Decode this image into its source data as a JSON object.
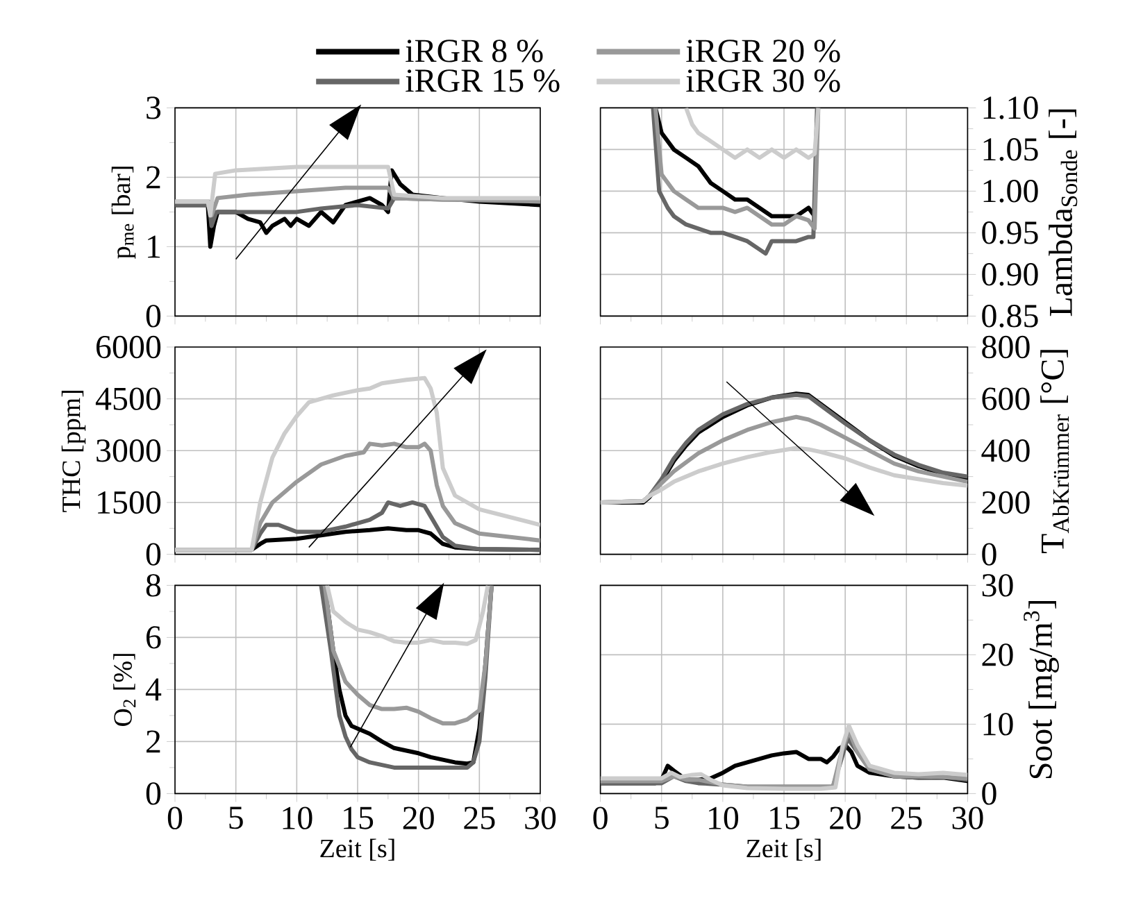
{
  "chart_data": [
    {
      "type": "line",
      "ylabel": "p$_{me}$ [bar]",
      "xlim": [
        0,
        30
      ],
      "xticks": [
        0,
        5,
        10,
        15,
        20,
        25,
        30
      ],
      "ylim": [
        0,
        3
      ],
      "yticks": [
        0,
        1,
        2,
        3
      ],
      "grid": true,
      "legend": "top",
      "tick_labels": "y",
      "series": [
        {
          "name": "iRGR 8 %",
          "color": "#000000",
          "x": [
            0,
            2.7,
            2.9,
            3.2,
            3.5,
            5,
            6,
            7,
            7.5,
            8,
            9,
            9.5,
            10,
            11,
            12,
            13,
            14,
            15,
            16,
            17,
            17.5,
            17.8,
            18.5,
            19.5,
            22,
            25,
            30
          ],
          "values": [
            1.6,
            1.6,
            1.0,
            1.3,
            1.5,
            1.5,
            1.4,
            1.35,
            1.2,
            1.3,
            1.4,
            1.3,
            1.4,
            1.3,
            1.5,
            1.35,
            1.6,
            1.65,
            1.7,
            1.6,
            1.5,
            2.1,
            1.9,
            1.75,
            1.7,
            1.65,
            1.6
          ]
        },
        {
          "name": "iRGR 15 %",
          "color": "#666666",
          "x": [
            0,
            2.8,
            3.0,
            3.4,
            5,
            7,
            10,
            12,
            15,
            17.5,
            18,
            22,
            30
          ],
          "values": [
            1.6,
            1.6,
            1.3,
            1.5,
            1.5,
            1.5,
            1.5,
            1.55,
            1.6,
            1.55,
            1.7,
            1.68,
            1.68
          ]
        },
        {
          "name": "iRGR 20 %",
          "color": "#999999",
          "x": [
            0,
            2.8,
            3.0,
            3.5,
            6,
            10,
            14,
            17.5,
            18,
            22,
            30
          ],
          "values": [
            1.65,
            1.65,
            1.45,
            1.7,
            1.75,
            1.8,
            1.85,
            1.85,
            1.7,
            1.68,
            1.65
          ]
        },
        {
          "name": "iRGR 30 %",
          "color": "#cccccc",
          "x": [
            0,
            2.7,
            2.9,
            3.3,
            5,
            10,
            17.5,
            18,
            22,
            30
          ],
          "values": [
            1.65,
            1.65,
            1.45,
            2.05,
            2.1,
            2.15,
            2.15,
            1.75,
            1.7,
            1.7
          ]
        }
      ]
    },
    {
      "type": "line",
      "ylabel": "Lambda$_{Sonde}$ [-]",
      "xlim": [
        0,
        30
      ],
      "xticks": [
        0,
        5,
        10,
        15,
        20,
        25,
        30
      ],
      "ylim": [
        0.85,
        1.1
      ],
      "yticks": [
        0.85,
        {
          "value": 0.9,
          "label": "0.90"
        },
        0.95,
        {
          "value": 1.0,
          "label": "1.00"
        },
        1.05,
        {
          "value": 1.1,
          "label": "1.10"
        }
      ],
      "grid": true,
      "tick_labels": "y",
      "series": [
        {
          "color": "#000000",
          "x": [
            4.5,
            5,
            5.5,
            6,
            7,
            8,
            9,
            10,
            11,
            12,
            13,
            14,
            15,
            16,
            17,
            17.5
          ],
          "values": [
            1.1,
            1.07,
            1.06,
            1.05,
            1.04,
            1.03,
            1.01,
            1.0,
            0.99,
            0.99,
            0.98,
            0.97,
            0.97,
            0.97,
            0.98,
            0.97
          ]
        },
        {
          "color": "#666666",
          "x": [
            4.3,
            4.8,
            5.5,
            6,
            7,
            8,
            9,
            10,
            11,
            12,
            13,
            13.5,
            14,
            15,
            16,
            17,
            17.4,
            17.7
          ],
          "values": [
            1.1,
            1.0,
            0.98,
            0.97,
            0.96,
            0.955,
            0.95,
            0.95,
            0.945,
            0.94,
            0.93,
            0.925,
            0.94,
            0.94,
            0.94,
            0.945,
            0.945,
            1.1
          ]
        },
        {
          "color": "#999999",
          "x": [
            4.5,
            5,
            6,
            7,
            8,
            9,
            10,
            11,
            12,
            13,
            14,
            15,
            16,
            17,
            17.5,
            17.8
          ],
          "values": [
            1.1,
            1.02,
            1.0,
            0.99,
            0.98,
            0.98,
            0.98,
            0.975,
            0.98,
            0.97,
            0.96,
            0.96,
            0.97,
            0.965,
            0.955,
            1.1
          ]
        },
        {
          "color": "#cccccc",
          "x": [
            7,
            7.5,
            8,
            9,
            10,
            11,
            12,
            13,
            14,
            15,
            16,
            17,
            17.5,
            17.8
          ],
          "values": [
            1.1,
            1.08,
            1.07,
            1.06,
            1.05,
            1.04,
            1.05,
            1.04,
            1.05,
            1.04,
            1.05,
            1.04,
            1.045,
            1.1
          ]
        }
      ]
    },
    {
      "type": "line",
      "ylabel": "THC [ppm]",
      "xlim": [
        0,
        30
      ],
      "xticks": [
        0,
        5,
        10,
        15,
        20,
        25,
        30
      ],
      "ylim": [
        0,
        6000
      ],
      "yticks": [
        0,
        1500,
        3000,
        4500,
        6000
      ],
      "grid": true,
      "tick_labels": "y",
      "series": [
        {
          "color": "#000000",
          "x": [
            0,
            6.3,
            7,
            7.5,
            10,
            12,
            14,
            16,
            17.5,
            19,
            20,
            21,
            22,
            23,
            25,
            30
          ],
          "values": [
            130,
            130,
            300,
            400,
            450,
            550,
            650,
            700,
            750,
            700,
            700,
            600,
            300,
            200,
            150,
            130
          ]
        },
        {
          "color": "#666666",
          "x": [
            0,
            6.3,
            7,
            7.5,
            8.5,
            10,
            12,
            14,
            16,
            17,
            17.5,
            18.5,
            19.5,
            20.5,
            21,
            22,
            23,
            25,
            30
          ],
          "values": [
            130,
            130,
            600,
            850,
            850,
            650,
            650,
            800,
            1000,
            1200,
            1500,
            1400,
            1500,
            1400,
            1100,
            500,
            250,
            150,
            130
          ]
        },
        {
          "color": "#999999",
          "x": [
            0,
            6.3,
            7,
            8,
            10,
            12,
            14,
            15.5,
            16,
            17,
            18,
            19,
            20,
            20.5,
            21,
            21.5,
            22,
            23,
            25,
            30
          ],
          "values": [
            130,
            130,
            900,
            1500,
            2100,
            2600,
            2850,
            2950,
            3200,
            3150,
            3200,
            3100,
            3100,
            3200,
            3000,
            2000,
            1400,
            900,
            600,
            400
          ]
        },
        {
          "color": "#cccccc",
          "x": [
            0,
            6.3,
            7,
            8,
            9,
            10,
            11,
            13,
            15,
            16,
            17,
            19,
            20.5,
            21,
            21.5,
            22,
            23,
            25,
            30
          ],
          "values": [
            130,
            130,
            1500,
            2800,
            3500,
            4000,
            4400,
            4600,
            4750,
            4800,
            4950,
            5050,
            5100,
            4800,
            4100,
            2500,
            1700,
            1300,
            850
          ]
        }
      ]
    },
    {
      "type": "line",
      "ylabel": "\\text{T}_{\\text{AbKrümmer}}\\text{ [°C]}",
      "xlim": [
        0,
        30
      ],
      "xticks": [
        0,
        5,
        10,
        15,
        20,
        25,
        30
      ],
      "ylim": [
        0,
        800
      ],
      "yticks": [
        0,
        200,
        400,
        600,
        800
      ],
      "grid": true,
      "tick_labels": "y",
      "series": [
        {
          "color": "#000000",
          "x": [
            0,
            3.5,
            4,
            5,
            6,
            7,
            8,
            10,
            12,
            14,
            16,
            17,
            18,
            20,
            22,
            24,
            26,
            28,
            30
          ],
          "values": [
            200,
            200,
            220,
            280,
            360,
            420,
            470,
            530,
            575,
            605,
            620,
            615,
            580,
            510,
            440,
            380,
            340,
            310,
            290
          ]
        },
        {
          "color": "#666666",
          "x": [
            0,
            3.5,
            4,
            5,
            6,
            7,
            8,
            10,
            12,
            14,
            16,
            17,
            18,
            20,
            22,
            24,
            26,
            28,
            30
          ],
          "values": [
            200,
            205,
            225,
            290,
            370,
            430,
            480,
            540,
            580,
            605,
            615,
            610,
            575,
            505,
            440,
            385,
            345,
            315,
            300
          ]
        },
        {
          "color": "#999999",
          "x": [
            0,
            3.5,
            4,
            5,
            6,
            8,
            10,
            12,
            14,
            16,
            17,
            18,
            20,
            22,
            24,
            26,
            28,
            30
          ],
          "values": [
            200,
            205,
            225,
            275,
            320,
            390,
            440,
            480,
            510,
            530,
            520,
            500,
            450,
            400,
            350,
            320,
            300,
            280
          ]
        },
        {
          "color": "#cccccc",
          "x": [
            0,
            3.5,
            4,
            5,
            6,
            8,
            10,
            12,
            14,
            16,
            17,
            18,
            20,
            22,
            24,
            26,
            28,
            30
          ],
          "values": [
            200,
            205,
            225,
            250,
            280,
            320,
            350,
            375,
            395,
            410,
            405,
            395,
            370,
            335,
            305,
            290,
            275,
            265
          ]
        }
      ]
    },
    {
      "type": "line",
      "ylabel": "O$_{2}$ [%]",
      "xlabel": "Zeit [s]",
      "xlim": [
        0,
        30
      ],
      "xticks": [
        0,
        5,
        10,
        15,
        20,
        25,
        30
      ],
      "ylim": [
        0,
        8
      ],
      "yticks": [
        0,
        2,
        4,
        6,
        8
      ],
      "grid": true,
      "series": [
        {
          "color": "#000000",
          "x": [
            12.3,
            13,
            13.5,
            14,
            14.5,
            15,
            16,
            17,
            18,
            19,
            20,
            21,
            22,
            23,
            24,
            24.5,
            25,
            25.5,
            26
          ],
          "values": [
            8,
            5.5,
            4,
            3,
            2.6,
            2.5,
            2.3,
            2.0,
            1.75,
            1.65,
            1.55,
            1.4,
            1.3,
            1.2,
            1.15,
            1.2,
            2.5,
            5,
            8
          ]
        },
        {
          "color": "#666666",
          "x": [
            12,
            12.8,
            13.5,
            14,
            14.5,
            15,
            16,
            17,
            18,
            20,
            22,
            24,
            24.5,
            25,
            25.5,
            26
          ],
          "values": [
            8,
            5.5,
            3,
            2.2,
            1.7,
            1.4,
            1.2,
            1.1,
            1.0,
            1.0,
            1.0,
            1.0,
            1.2,
            2,
            4.5,
            8
          ]
        },
        {
          "color": "#999999",
          "x": [
            12.3,
            13,
            14,
            15,
            16,
            17,
            18,
            19,
            20,
            21,
            22,
            23,
            24,
            25,
            25.5,
            26
          ],
          "values": [
            8,
            5.5,
            4.3,
            3.8,
            3.4,
            3.25,
            3.25,
            3.3,
            3.15,
            2.9,
            2.7,
            2.7,
            2.85,
            3.2,
            5,
            8
          ]
        },
        {
          "color": "#cccccc",
          "x": [
            12.5,
            13,
            14,
            15,
            16,
            17,
            18,
            19,
            20,
            21,
            22,
            23,
            24,
            24.7,
            25.3,
            25.7
          ],
          "values": [
            8,
            7,
            6.6,
            6.3,
            6.2,
            6.05,
            5.85,
            5.8,
            5.8,
            5.9,
            5.8,
            5.8,
            5.75,
            5.9,
            7,
            8
          ]
        }
      ]
    },
    {
      "type": "line",
      "ylabel": "Soot [mg/m$^{3}$]",
      "xlabel": "Zeit [s]",
      "xlim": [
        0,
        30
      ],
      "xticks": [
        0,
        5,
        10,
        15,
        20,
        25,
        30
      ],
      "ylim": [
        0,
        30
      ],
      "yticks": [
        0,
        10,
        20,
        30
      ],
      "grid": true,
      "series": [
        {
          "color": "#000000",
          "x": [
            0,
            4.5,
            5,
            5.5,
            6,
            7,
            8,
            9,
            10,
            11,
            12,
            13,
            14,
            15,
            16,
            16.5,
            17,
            18,
            18.5,
            19,
            19.5,
            20,
            20.5,
            21,
            22,
            24,
            26,
            28,
            30
          ],
          "values": [
            1.5,
            1.5,
            2,
            4,
            3.3,
            2,
            2,
            2.2,
            3,
            4,
            4.5,
            5,
            5.5,
            5.8,
            6,
            5.5,
            5,
            5,
            4.5,
            5.3,
            6.5,
            7,
            6,
            4,
            3,
            2.5,
            2.3,
            2.3,
            1.8
          ]
        },
        {
          "color": "#666666",
          "x": [
            0,
            5,
            6,
            7,
            8,
            10,
            12,
            15,
            18,
            19,
            19.7,
            20.2,
            21,
            22,
            24,
            26,
            28,
            30
          ],
          "values": [
            1.5,
            1.5,
            2.5,
            1.8,
            1.5,
            1.3,
            1,
            1,
            1,
            1,
            5,
            8,
            6,
            3.5,
            2.5,
            2.3,
            2.4,
            2
          ]
        },
        {
          "color": "#999999",
          "x": [
            0,
            5,
            6,
            7,
            8,
            10,
            12,
            15,
            19,
            19.7,
            20.3,
            21,
            22,
            24,
            26,
            28,
            30
          ],
          "values": [
            1.8,
            1.8,
            2.5,
            2,
            2,
            1.3,
            1,
            1,
            1,
            6,
            9,
            6,
            3.5,
            2.5,
            2.5,
            2.4,
            2.2
          ]
        },
        {
          "color": "#cccccc",
          "x": [
            0,
            5,
            5.8,
            6.5,
            7.5,
            8.2,
            9,
            10,
            12,
            15,
            18,
            19.2,
            19.8,
            20.3,
            21,
            22,
            24,
            26,
            28,
            30
          ],
          "values": [
            2.2,
            2.2,
            3,
            2.4,
            2.7,
            2.8,
            2,
            1.2,
            0.8,
            0.7,
            0.7,
            0.9,
            7,
            9.8,
            7,
            4,
            3,
            2.8,
            3,
            2.7
          ]
        }
      ]
    }
  ]
}
